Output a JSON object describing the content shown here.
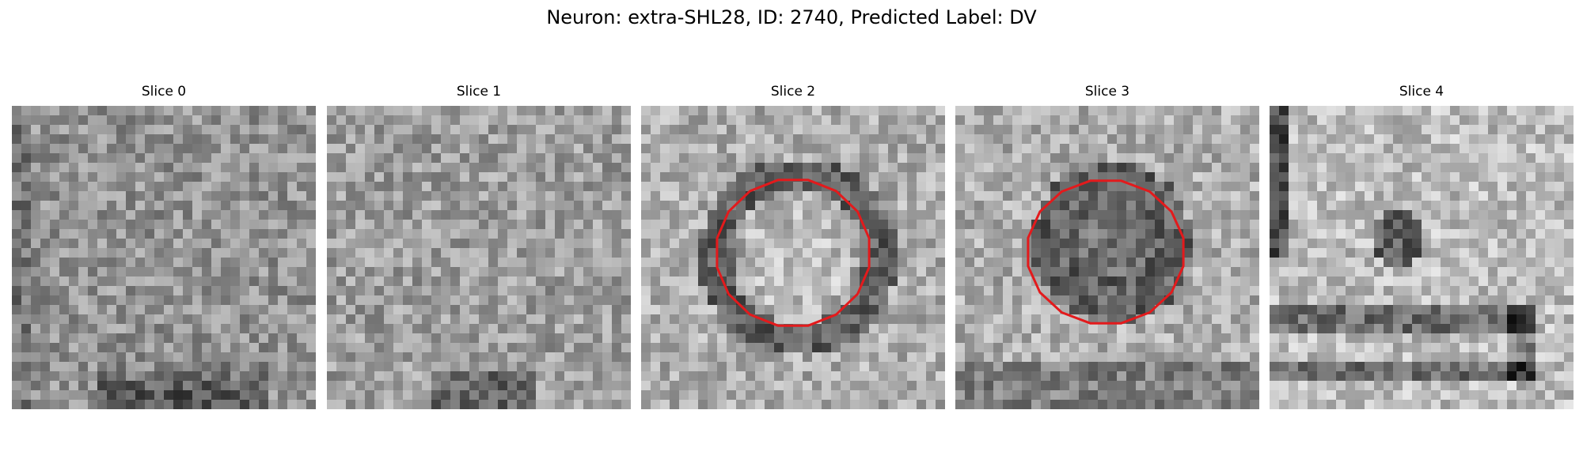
{
  "figure": {
    "title": "Neuron: extra-SHL28, ID: 2740, Predicted Label: DV"
  },
  "panels": [
    {
      "title": "Slice 0",
      "has_contour": false
    },
    {
      "title": "Slice 1",
      "has_contour": false
    },
    {
      "title": "Slice 2",
      "has_contour": true
    },
    {
      "title": "Slice 3",
      "has_contour": true
    },
    {
      "title": "Slice 4",
      "has_contour": false
    }
  ],
  "colors": {
    "contour": "#e31a1c",
    "background": "#ffffff"
  }
}
